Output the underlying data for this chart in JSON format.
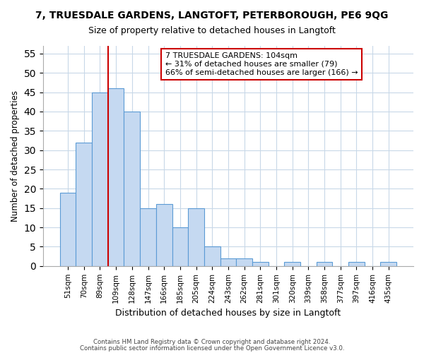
{
  "title": "7, TRUESDALE GARDENS, LANGTOFT, PETERBOROUGH, PE6 9QG",
  "subtitle": "Size of property relative to detached houses in Langtoft",
  "xlabel": "Distribution of detached houses by size in Langtoft",
  "ylabel": "Number of detached properties",
  "bar_values": [
    19,
    32,
    45,
    46,
    40,
    15,
    16,
    10,
    15,
    5,
    2,
    2,
    1,
    0,
    1,
    0,
    1,
    0,
    1,
    0,
    1
  ],
  "bar_labels": [
    "51sqm",
    "70sqm",
    "89sqm",
    "109sqm",
    "128sqm",
    "147sqm",
    "166sqm",
    "185sqm",
    "205sqm",
    "224sqm",
    "243sqm",
    "262sqm",
    "281sqm",
    "301sqm",
    "320sqm",
    "339sqm",
    "358sqm",
    "377sqm",
    "397sqm",
    "416sqm",
    "435sqm"
  ],
  "bar_color": "#c5d9f1",
  "bar_edge_color": "#5b9bd5",
  "vline_color": "#cc0000",
  "vline_position": 2.5,
  "ylim": [
    0,
    57
  ],
  "yticks": [
    0,
    5,
    10,
    15,
    20,
    25,
    30,
    35,
    40,
    45,
    50,
    55
  ],
  "annotation_title": "7 TRUESDALE GARDENS: 104sqm",
  "annotation_line1": "← 31% of detached houses are smaller (79)",
  "annotation_line2": "66% of semi-detached houses are larger (166) →",
  "footer1": "Contains HM Land Registry data © Crown copyright and database right 2024.",
  "footer2": "Contains public sector information licensed under the Open Government Licence v3.0.",
  "bg_color": "#ffffff",
  "grid_color": "#c8d8e8"
}
